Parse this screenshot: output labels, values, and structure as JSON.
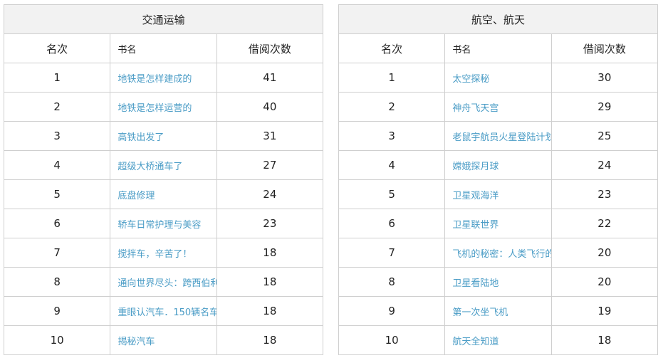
{
  "headers": {
    "rank": "名次",
    "name": "书名",
    "count": "借阅次数"
  },
  "left": {
    "title": "交通运输",
    "rows": [
      {
        "rank": "1",
        "name": "地铁是怎样建成的",
        "count": "41"
      },
      {
        "rank": "2",
        "name": "地铁是怎样运营的",
        "count": "40"
      },
      {
        "rank": "3",
        "name": "高铁出发了",
        "count": "31"
      },
      {
        "rank": "4",
        "name": "超级大桥通车了",
        "count": "27"
      },
      {
        "rank": "5",
        "name": "底盘修理",
        "count": "24"
      },
      {
        "rank": "6",
        "name": "轿车日常护理与美容",
        "count": "23"
      },
      {
        "rank": "7",
        "name": "搅拌车，辛苦了！",
        "count": "18"
      },
      {
        "rank": "8",
        "name": "通向世界尽头：跨西伯利亚大铁路的...",
        "count": "18"
      },
      {
        "rank": "9",
        "name": "重眼认汽车．150辆名车",
        "count": "18"
      },
      {
        "rank": "10",
        "name": "揭秘汽车",
        "count": "18"
      }
    ]
  },
  "right": {
    "title": "航空、航天",
    "rows": [
      {
        "rank": "1",
        "name": "太空探秘",
        "count": "30"
      },
      {
        "rank": "2",
        "name": "神舟飞天宫",
        "count": "29"
      },
      {
        "rank": "3",
        "name": "老鼠宇航员火星登陆计划",
        "count": "25"
      },
      {
        "rank": "4",
        "name": "嫦娥探月球",
        "count": "24"
      },
      {
        "rank": "5",
        "name": "卫星观海洋",
        "count": "23"
      },
      {
        "rank": "6",
        "name": "卫星联世界",
        "count": "22"
      },
      {
        "rank": "7",
        "name": "飞机的秘密：人类飞行的梦想",
        "count": "20"
      },
      {
        "rank": "8",
        "name": "卫星看陆地",
        "count": "20"
      },
      {
        "rank": "9",
        "name": "第一次坐飞机",
        "count": "19"
      },
      {
        "rank": "10",
        "name": "航天全知道",
        "count": "18"
      }
    ]
  },
  "colors": {
    "link": "#4a9cc6",
    "title_bg": "#f2f2f2",
    "border": "#cfcfcf"
  }
}
